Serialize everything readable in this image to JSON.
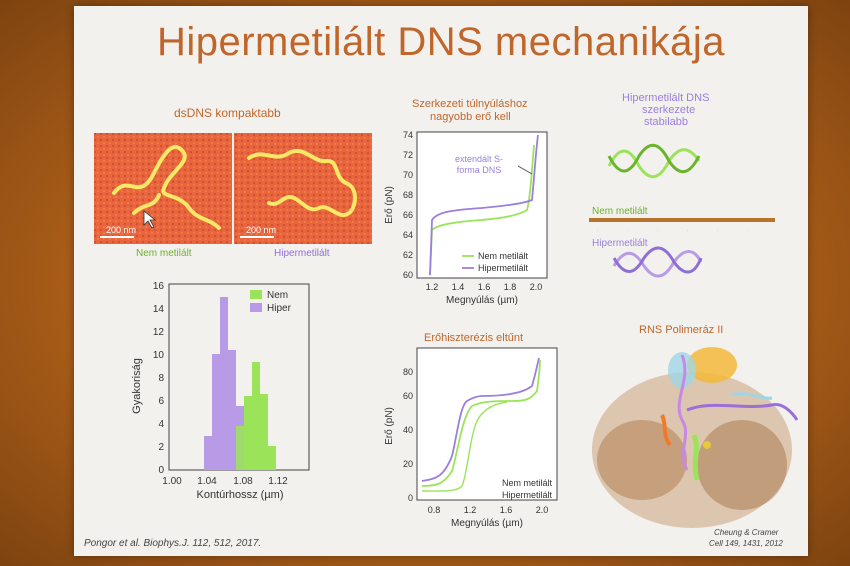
{
  "slide": {
    "title": "Hipermetilált DNS mechanikája",
    "citation": "Pongor et al. Biophys.J. 112, 512, 2017.",
    "credit_line1": "Cheung & Cramer",
    "credit_line2": "Cell 149, 1431, 2012"
  },
  "afm": {
    "heading": "dsDNS kompaktabb",
    "left_scale": "200 nm",
    "right_scale": "200 nm",
    "left_label": "Nem metilált",
    "right_label": "Hipermetilált"
  },
  "histogram": {
    "ylabel": "Gyakoriság",
    "xlabel": "Kontúrhossz (µm)",
    "legend": [
      "Nem",
      "Hiper"
    ],
    "y_ticks": [
      "0",
      "2",
      "4",
      "6",
      "8",
      "10",
      "12",
      "14",
      "16"
    ],
    "x_ticks": [
      "1.00",
      "1.04",
      "1.08",
      "1.12"
    ],
    "colors": {
      "nem": "#9be45a",
      "hiper": "#b89ae6"
    }
  },
  "force_curve": {
    "heading_line1": "Szerkezeti túlnyúláshoz",
    "heading_line2": "nagyobb erő kell",
    "ylabel": "Erő (pN)",
    "xlabel": "Megnyúlás (µm)",
    "annotation_line1": "extendált S-",
    "annotation_line2": "forma DNS",
    "legend": [
      "Nem metilált",
      "Hipermetilált"
    ],
    "y_ticks": [
      "60",
      "62",
      "64",
      "66",
      "68",
      "70",
      "72",
      "74"
    ],
    "x_ticks": [
      "1.2",
      "1.4",
      "1.6",
      "1.8",
      "2.0"
    ]
  },
  "hysteresis": {
    "heading": "Erőhiszterézis eltűnt",
    "ylabel": "Erő (pN)",
    "xlabel": "Megnyúlás (µm)",
    "legend": [
      "Nem metilált",
      "Hipermetilált"
    ],
    "y_ticks": [
      "0",
      "20",
      "40",
      "60",
      "80"
    ],
    "x_ticks": [
      "0.8",
      "1.2",
      "1.6",
      "2.0"
    ]
  },
  "structure": {
    "heading_line1": "Hipermetilált DNS",
    "heading_line2": "szerkezete",
    "heading_line3": "stabilabb",
    "nem_label": "Nem metilált",
    "hiper_label": "Hipermetilált"
  },
  "polymerase": {
    "heading": "RNS Polimeráz II"
  }
}
